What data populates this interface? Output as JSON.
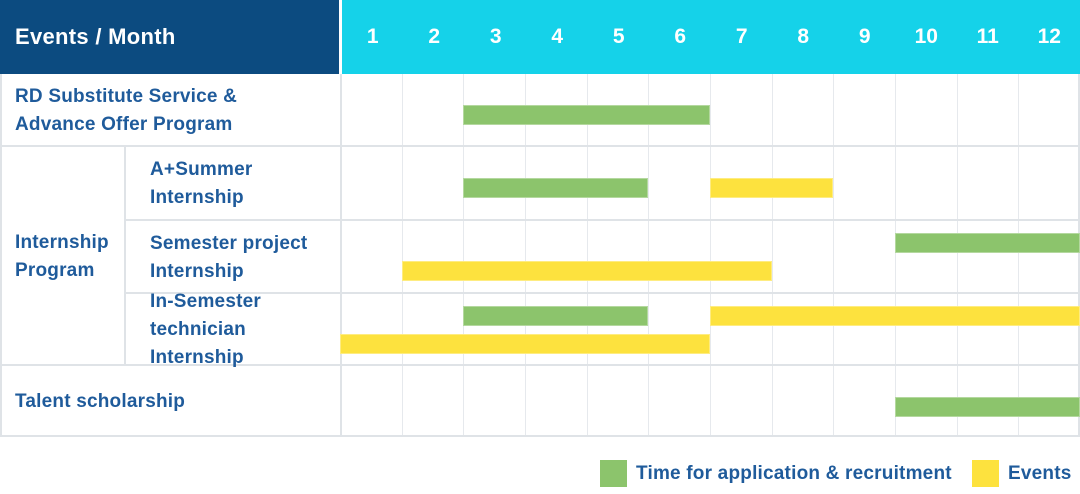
{
  "colors": {
    "header_bg": "#0c4b80",
    "months_bg": "#15d2e9",
    "green": "#8cc46c",
    "yellow": "#fde23e",
    "label_text": "#1f5b9b",
    "grid_line": "#e6e9ed",
    "frame_line": "#dfe3e7"
  },
  "header": {
    "corner_label": "Events / Month",
    "months": [
      "1",
      "2",
      "3",
      "4",
      "5",
      "6",
      "7",
      "8",
      "9",
      "10",
      "11",
      "12"
    ]
  },
  "legend": {
    "items": [
      {
        "color_key": "green",
        "label": "Time for application & recruitment"
      },
      {
        "color_key": "yellow",
        "label": "Events"
      }
    ]
  },
  "chart_data": {
    "type": "table",
    "subtype": "gantt",
    "title": "Events / Month",
    "x_axis": {
      "label": "Month",
      "ticks": [
        "1",
        "2",
        "3",
        "4",
        "5",
        "6",
        "7",
        "8",
        "9",
        "10",
        "11",
        "12"
      ],
      "range": [
        1,
        12
      ]
    },
    "series_legend": [
      {
        "name": "Time for application & recruitment",
        "color_key": "green"
      },
      {
        "name": "Events",
        "color_key": "yellow"
      }
    ],
    "group_label_lines": [
      "Internship",
      "Program"
    ],
    "rows": [
      {
        "label_lines": [
          "RD Substitute Service &",
          "Advance Offer Program"
        ],
        "group": null,
        "bars": [
          {
            "series": "Time for application & recruitment",
            "color_key": "green",
            "start_month": 3,
            "end_month": 6,
            "lane": "mid"
          }
        ]
      },
      {
        "label_lines": [
          "A+Summer",
          "Internship"
        ],
        "group": "Internship Program",
        "bars": [
          {
            "series": "Time for application & recruitment",
            "color_key": "green",
            "start_month": 3,
            "end_month": 5,
            "lane": "mid"
          },
          {
            "series": "Events",
            "color_key": "yellow",
            "start_month": 7,
            "end_month": 8,
            "lane": "mid"
          }
        ]
      },
      {
        "label_lines": [
          "Semester project",
          "Internship"
        ],
        "group": "Internship Program",
        "bars": [
          {
            "series": "Time for application & recruitment",
            "color_key": "green",
            "start_month": 10,
            "end_month": 12,
            "lane": "top"
          },
          {
            "series": "Events",
            "color_key": "yellow",
            "start_month": 2,
            "end_month": 7,
            "lane": "bottom"
          }
        ]
      },
      {
        "label_lines": [
          "In-Semester",
          "technician Internship"
        ],
        "group": "Internship Program",
        "bars": [
          {
            "series": "Time for application & recruitment",
            "color_key": "green",
            "start_month": 3,
            "end_month": 5,
            "lane": "top"
          },
          {
            "series": "Events",
            "color_key": "yellow",
            "start_month": 7,
            "end_month": 12,
            "lane": "top"
          },
          {
            "series": "Events",
            "color_key": "yellow",
            "start_month": 1,
            "end_month": 6,
            "lane": "bottom"
          }
        ]
      },
      {
        "label_lines": [
          "Talent scholarship"
        ],
        "group": null,
        "bars": [
          {
            "series": "Time for application & recruitment",
            "color_key": "green",
            "start_month": 10,
            "end_month": 12,
            "lane": "mid"
          }
        ]
      }
    ]
  }
}
